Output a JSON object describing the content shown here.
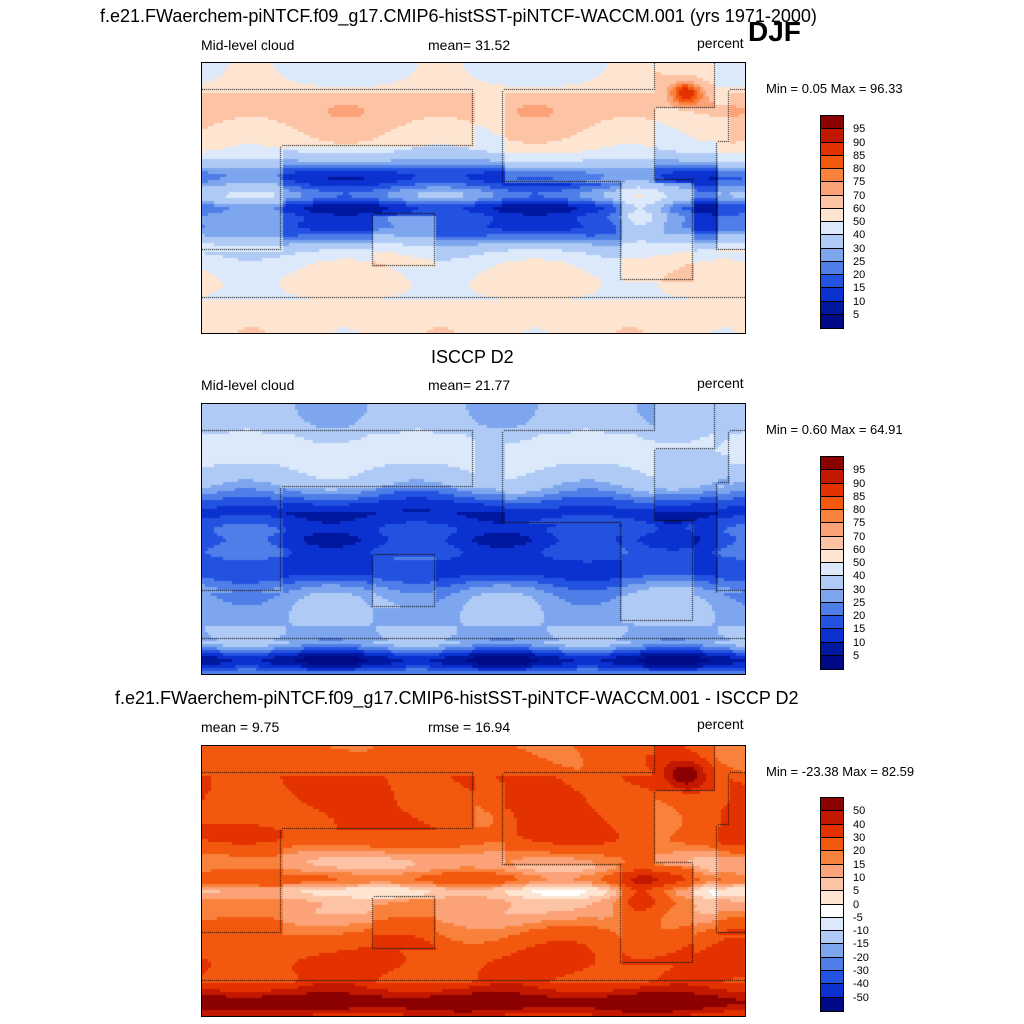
{
  "header": {
    "main_title": "f.e21.FWaerchem-piNTCF.f09_g17.CMIP6-histSST-piNTCF-WACCM.001 (yrs 1971-2000)",
    "season": "DJF"
  },
  "chart_data": [
    {
      "type": "heatmap",
      "title": "",
      "left_label": "Mid-level cloud",
      "center_label": "mean=  31.52",
      "units": "percent",
      "minmax": "Min =   0.05 Max =  96.33",
      "colorbar_levels": [
        "95",
        "90",
        "85",
        "80",
        "75",
        "70",
        "60",
        "50",
        "40",
        "30",
        "25",
        "20",
        "15",
        "10",
        "5"
      ],
      "colors": [
        "#8b0000",
        "#c31800",
        "#e33200",
        "#f3580f",
        "#f8823c",
        "#fba278",
        "#fcc4a4",
        "#fde5d2",
        "#dbe9fb",
        "#afcaf5",
        "#7ea6ef",
        "#4f7ee8",
        "#2452e0",
        "#0b31d0",
        "#00179f",
        "#000a86"
      ],
      "mean": 31.52,
      "min": 0.05,
      "max": 96.33
    },
    {
      "type": "heatmap",
      "title": "ISCCP D2",
      "left_label": "Mid-level cloud",
      "center_label": "mean=  21.77",
      "units": "percent",
      "minmax": "Min =   0.60 Max =  64.91",
      "colorbar_levels": [
        "95",
        "90",
        "85",
        "80",
        "75",
        "70",
        "60",
        "50",
        "40",
        "30",
        "25",
        "20",
        "15",
        "10",
        "5"
      ],
      "colors": [
        "#8b0000",
        "#c31800",
        "#e33200",
        "#f3580f",
        "#f8823c",
        "#fba278",
        "#fcc4a4",
        "#fde5d2",
        "#dbe9fb",
        "#afcaf5",
        "#7ea6ef",
        "#4f7ee8",
        "#2452e0",
        "#0b31d0",
        "#00179f",
        "#000a86"
      ],
      "mean": 21.77,
      "min": 0.6,
      "max": 64.91
    },
    {
      "type": "heatmap",
      "title": "f.e21.FWaerchem-piNTCF.f09_g17.CMIP6-histSST-piNTCF-WACCM.001 - ISCCP D2",
      "left_label": "mean =   9.75",
      "center_label": "rmse =  16.94",
      "units": "percent",
      "minmax": "Min = -23.38 Max =  82.59",
      "colorbar_levels": [
        "50",
        "40",
        "30",
        "20",
        "15",
        "10",
        "5",
        "0",
        "-5",
        "-10",
        "-15",
        "-20",
        "-30",
        "-40",
        "-50"
      ],
      "colors": [
        "#8b0000",
        "#c31800",
        "#e33200",
        "#f3580f",
        "#f8823c",
        "#fba278",
        "#fcc4a4",
        "#fde5d2",
        "#ffffff",
        "#dbe9fb",
        "#afcaf5",
        "#7ea6ef",
        "#4f7ee8",
        "#2452e0",
        "#0b31d0",
        "#000a86"
      ],
      "mean": 9.75,
      "rmse": 16.94,
      "min": -23.38,
      "max": 82.59
    }
  ]
}
